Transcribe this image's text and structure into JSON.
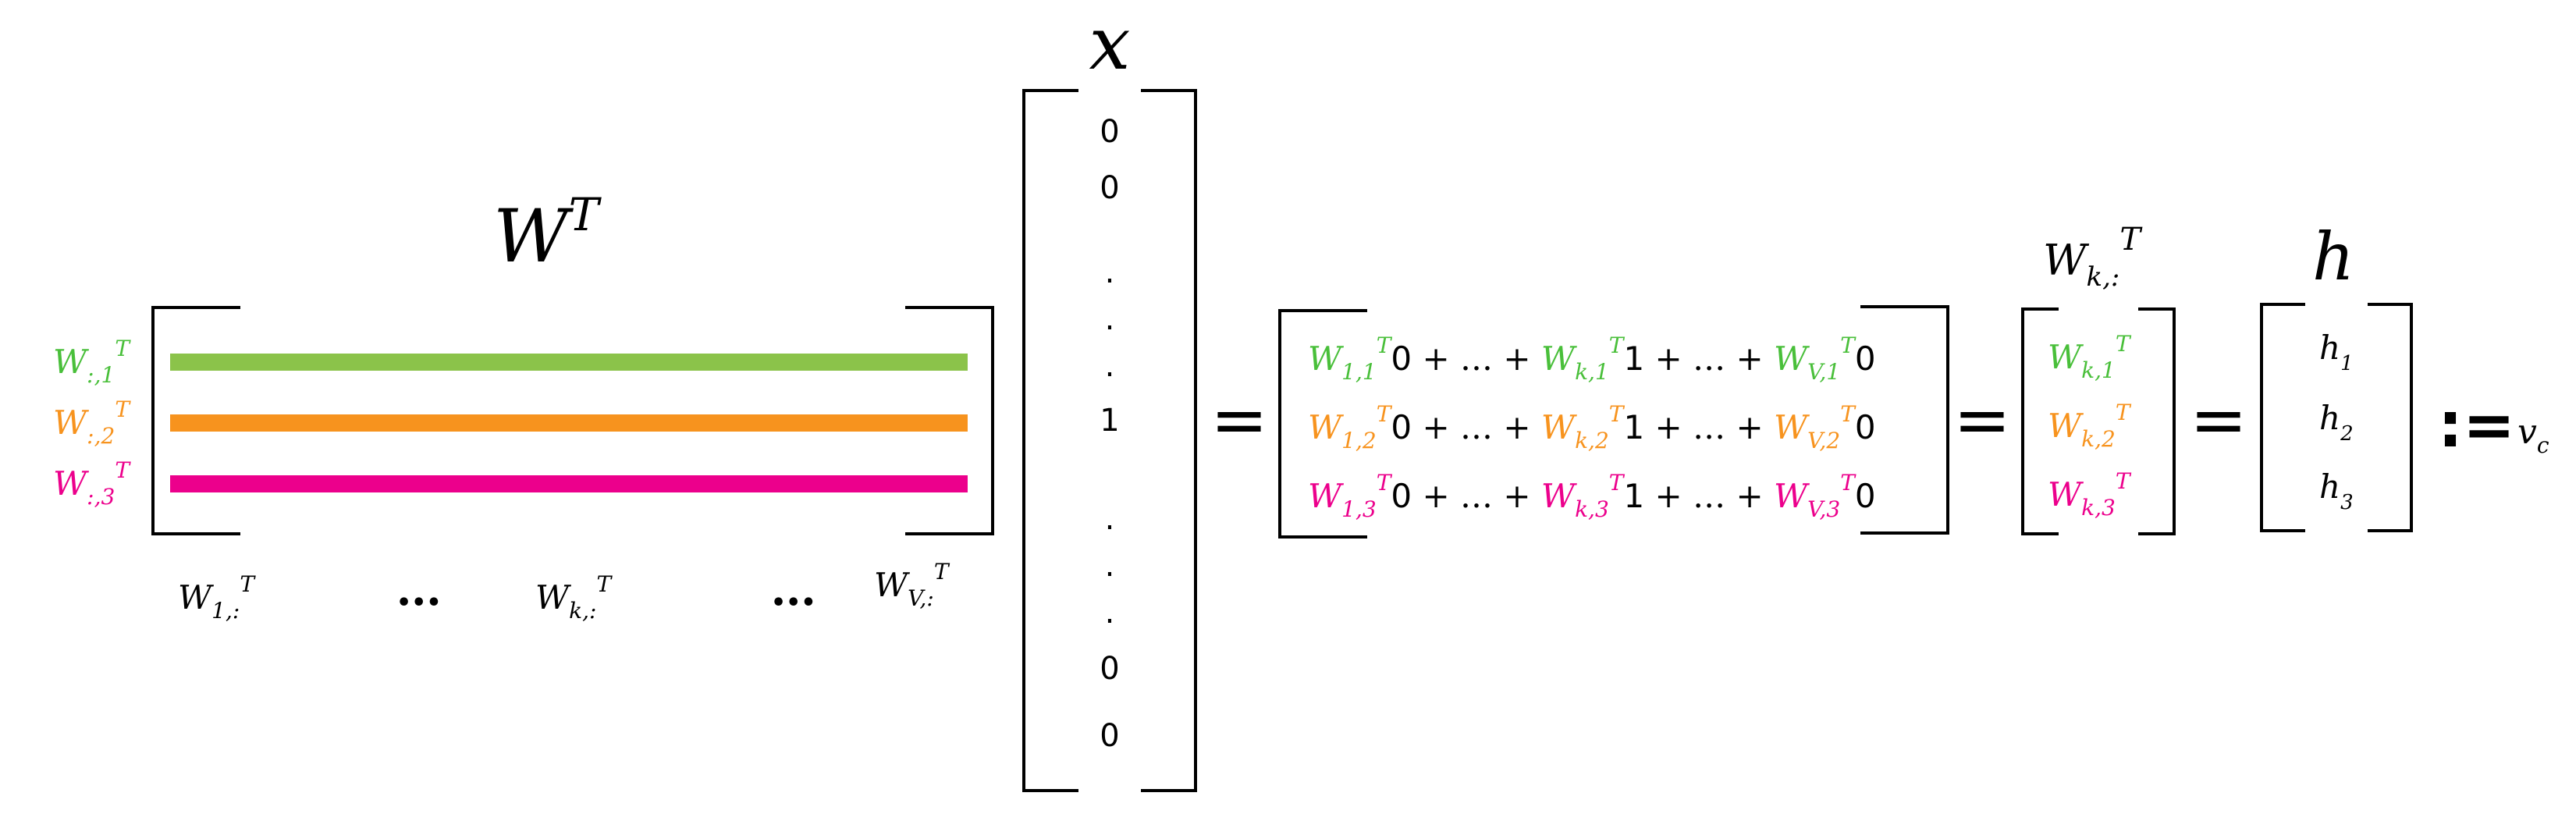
{
  "colors": {
    "green": "#49bf3a",
    "green_bar": "#8bc34a",
    "orange": "#f7931e",
    "magenta": "#ec008c",
    "black": "#000000"
  },
  "matrix_wt": {
    "title_base": "W",
    "title_sup": "T",
    "row_labels": [
      {
        "base": "W",
        "sub": ":,1",
        "sup": "T",
        "color": "green"
      },
      {
        "base": "W",
        "sub": ":,2",
        "sup": "T",
        "color": "orange"
      },
      {
        "base": "W",
        "sub": ":,3",
        "sup": "T",
        "color": "magenta"
      }
    ],
    "col_labels": [
      {
        "base": "W",
        "sub": "1,:",
        "sup": "T"
      },
      {
        "ellipsis": "•••"
      },
      {
        "base": "W",
        "sub": "k,:",
        "sup": "T"
      },
      {
        "ellipsis": "•••"
      },
      {
        "base": "W",
        "sub": "V,:",
        "sup": "T"
      }
    ]
  },
  "vector_x": {
    "title": "x",
    "entries": [
      "0",
      "0",
      ".",
      ".",
      ".",
      "1",
      ".",
      ".",
      ".",
      "0",
      "0"
    ]
  },
  "equals": "=",
  "expansion": {
    "rows": [
      {
        "color": "green",
        "plus": "+",
        "dots": "…",
        "terms": [
          {
            "sub": "1,1",
            "coef": "0"
          },
          {
            "sub": "k,1",
            "coef": "1"
          },
          {
            "sub": "V,1",
            "coef": "0"
          }
        ]
      },
      {
        "color": "orange",
        "plus": "+",
        "dots": "…",
        "terms": [
          {
            "sub": "1,2",
            "coef": "0"
          },
          {
            "sub": "k,2",
            "coef": "1"
          },
          {
            "sub": "V,2",
            "coef": "0"
          }
        ]
      },
      {
        "color": "magenta",
        "plus": "+",
        "dots": "…",
        "terms": [
          {
            "sub": "1,3",
            "coef": "0"
          },
          {
            "sub": "k,3",
            "coef": "1"
          },
          {
            "sub": "V,3",
            "coef": "0"
          }
        ]
      }
    ]
  },
  "wk_column": {
    "title": {
      "base": "W",
      "sub": "k,:",
      "sup": "T"
    },
    "entries": [
      {
        "base": "W",
        "sub": "k,1",
        "sup": "T",
        "color": "green"
      },
      {
        "base": "W",
        "sub": "k,2",
        "sup": "T",
        "color": "orange"
      },
      {
        "base": "W",
        "sub": "k,3",
        "sup": "T",
        "color": "magenta"
      }
    ]
  },
  "h_vector": {
    "title": "h",
    "entries": [
      {
        "base": "h",
        "sub": "1"
      },
      {
        "base": "h",
        "sub": "2"
      },
      {
        "base": "h",
        "sub": "3"
      }
    ]
  },
  "definition": {
    "symbol": ":=",
    "rhs_base": "v",
    "rhs_sub": "c"
  }
}
